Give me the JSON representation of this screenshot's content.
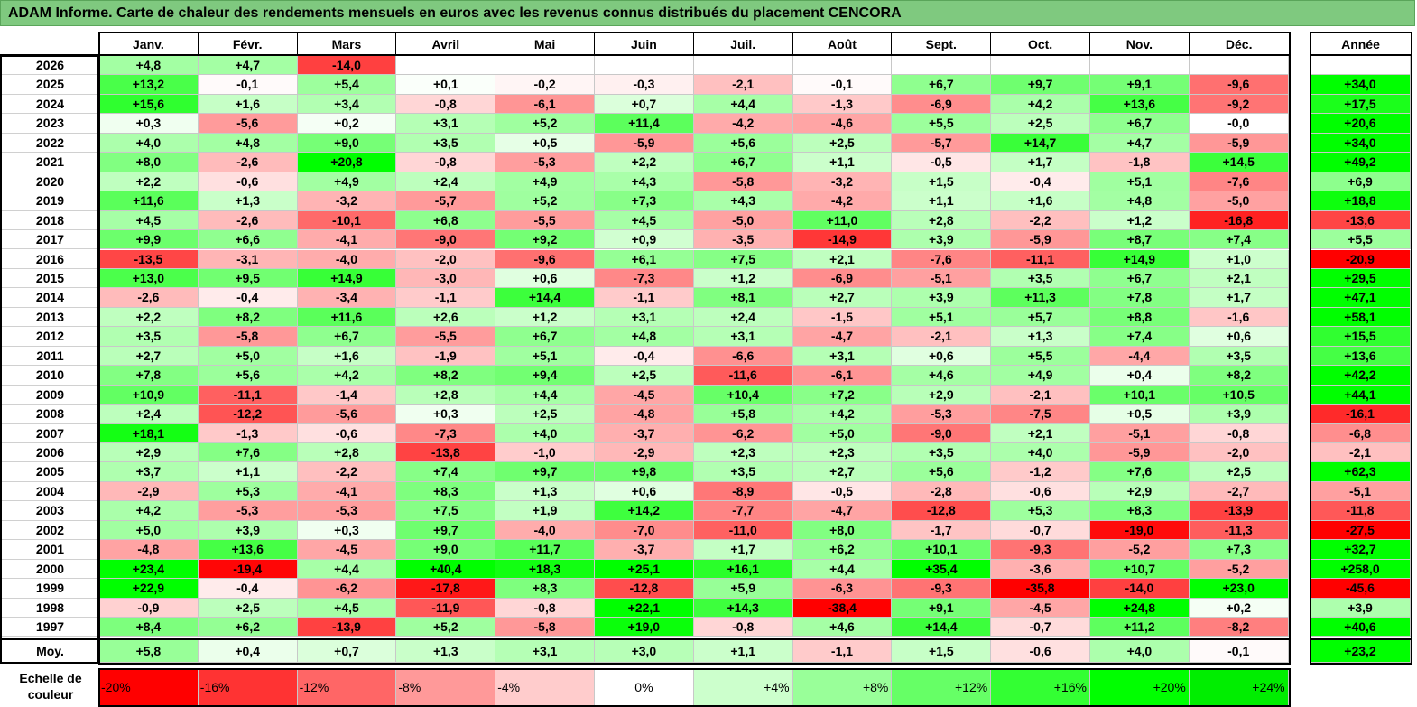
{
  "title": "ADAM Informe. Carte de chaleur des rendements mensuels en euros avec les revenus connus distribués du placement CENCORA",
  "chart_data": {
    "type": "heatmap",
    "title": "ADAM Informe. Carte de chaleur des rendements mensuels en euros avec les revenus connus distribués du placement CENCORA",
    "columns": [
      "Janv.",
      "Févr.",
      "Mars",
      "Avril",
      "Mai",
      "Juin",
      "Juil.",
      "Août",
      "Sept.",
      "Oct.",
      "Nov.",
      "Déc."
    ],
    "year_header": "Année",
    "rows": [
      {
        "label": "2026",
        "months": [
          "+4,8",
          "+4,7",
          "-14,0",
          "",
          "",
          "",
          "",
          "",
          "",
          "",
          "",
          ""
        ],
        "year": ""
      },
      {
        "label": "2025",
        "months": [
          "+13,2",
          "-0,1",
          "+5,4",
          "+0,1",
          "-0,2",
          "-0,3",
          "-2,1",
          "-0,1",
          "+6,7",
          "+9,7",
          "+9,1",
          "-9,6"
        ],
        "year": "+34,0"
      },
      {
        "label": "2024",
        "months": [
          "+15,6",
          "+1,6",
          "+3,4",
          "-0,8",
          "-6,1",
          "+0,7",
          "+4,4",
          "-1,3",
          "-6,9",
          "+4,2",
          "+13,6",
          "-9,2"
        ],
        "year": "+17,5"
      },
      {
        "label": "2023",
        "months": [
          "+0,3",
          "-5,6",
          "+0,2",
          "+3,1",
          "+5,2",
          "+11,4",
          "-4,2",
          "-4,6",
          "+5,5",
          "+2,5",
          "+6,7",
          "-0,0"
        ],
        "year": "+20,6"
      },
      {
        "label": "2022",
        "months": [
          "+4,0",
          "+4,8",
          "+9,0",
          "+3,5",
          "+0,5",
          "-5,9",
          "+5,6",
          "+2,5",
          "-5,7",
          "+14,7",
          "+4,7",
          "-5,9"
        ],
        "year": "+34,0"
      },
      {
        "label": "2021",
        "months": [
          "+8,0",
          "-2,6",
          "+20,8",
          "-0,8",
          "-5,3",
          "+2,2",
          "+6,7",
          "+1,1",
          "-0,5",
          "+1,7",
          "-1,8",
          "+14,5"
        ],
        "year": "+49,2"
      },
      {
        "label": "2020",
        "months": [
          "+2,2",
          "-0,6",
          "+4,9",
          "+2,4",
          "+4,9",
          "+4,3",
          "-5,8",
          "-3,2",
          "+1,5",
          "-0,4",
          "+5,1",
          "-7,6"
        ],
        "year": "+6,9"
      },
      {
        "label": "2019",
        "months": [
          "+11,6",
          "+1,3",
          "-3,2",
          "-5,7",
          "+5,2",
          "+7,3",
          "+4,3",
          "-4,2",
          "+1,1",
          "+1,6",
          "+4,8",
          "-5,0"
        ],
        "year": "+18,8"
      },
      {
        "label": "2018",
        "months": [
          "+4,5",
          "-2,6",
          "-10,1",
          "+6,8",
          "-5,5",
          "+4,5",
          "-5,0",
          "+11,0",
          "+2,8",
          "-2,2",
          "+1,2",
          "-16,8"
        ],
        "year": "-13,6"
      },
      {
        "label": "2017",
        "months": [
          "+9,9",
          "+6,6",
          "-4,1",
          "-9,0",
          "+9,2",
          "+0,9",
          "-3,5",
          "-14,9",
          "+3,9",
          "-5,9",
          "+8,7",
          "+7,4"
        ],
        "year": "+5,5"
      },
      {
        "label": "2016",
        "months": [
          "-13,5",
          "-3,1",
          "-4,0",
          "-2,0",
          "-9,6",
          "+6,1",
          "+7,5",
          "+2,1",
          "-7,6",
          "-11,1",
          "+14,9",
          "+1,0"
        ],
        "year": "-20,9"
      },
      {
        "label": "2015",
        "months": [
          "+13,0",
          "+9,5",
          "+14,9",
          "-3,0",
          "+0,6",
          "-7,3",
          "+1,2",
          "-6,9",
          "-5,1",
          "+3,5",
          "+6,7",
          "+2,1"
        ],
        "year": "+29,5"
      },
      {
        "label": "2014",
        "months": [
          "-2,6",
          "-0,4",
          "-3,4",
          "-1,1",
          "+14,4",
          "-1,1",
          "+8,1",
          "+2,7",
          "+3,9",
          "+11,3",
          "+7,8",
          "+1,7"
        ],
        "year": "+47,1"
      },
      {
        "label": "2013",
        "months": [
          "+2,2",
          "+8,2",
          "+11,6",
          "+2,6",
          "+1,2",
          "+3,1",
          "+2,4",
          "-1,5",
          "+5,1",
          "+5,7",
          "+8,8",
          "-1,6"
        ],
        "year": "+58,1"
      },
      {
        "label": "2012",
        "months": [
          "+3,5",
          "-5,8",
          "+6,7",
          "-5,5",
          "+6,7",
          "+4,8",
          "+3,1",
          "-4,7",
          "-2,1",
          "+1,3",
          "+7,4",
          "+0,6"
        ],
        "year": "+15,5"
      },
      {
        "label": "2011",
        "months": [
          "+2,7",
          "+5,0",
          "+1,6",
          "-1,9",
          "+5,1",
          "-0,4",
          "-6,6",
          "+3,1",
          "+0,6",
          "+5,5",
          "-4,4",
          "+3,5"
        ],
        "year": "+13,6"
      },
      {
        "label": "2010",
        "months": [
          "+7,8",
          "+5,6",
          "+4,2",
          "+8,2",
          "+9,4",
          "+2,5",
          "-11,6",
          "-6,1",
          "+4,6",
          "+4,9",
          "+0,4",
          "+8,2"
        ],
        "year": "+42,2"
      },
      {
        "label": "2009",
        "months": [
          "+10,9",
          "-11,1",
          "-1,4",
          "+2,8",
          "+4,4",
          "-4,5",
          "+10,4",
          "+7,2",
          "+2,9",
          "-2,1",
          "+10,1",
          "+10,5"
        ],
        "year": "+44,1"
      },
      {
        "label": "2008",
        "months": [
          "+2,4",
          "-12,2",
          "-5,6",
          "+0,3",
          "+2,5",
          "-4,8",
          "+5,8",
          "+4,2",
          "-5,3",
          "-7,5",
          "+0,5",
          "+3,9"
        ],
        "year": "-16,1"
      },
      {
        "label": "2007",
        "months": [
          "+18,1",
          "-1,3",
          "-0,6",
          "-7,3",
          "+4,0",
          "-3,7",
          "-6,2",
          "+5,0",
          "-9,0",
          "+2,1",
          "-5,1",
          "-0,8"
        ],
        "year": "-6,8"
      },
      {
        "label": "2006",
        "months": [
          "+2,9",
          "+7,6",
          "+2,8",
          "-13,8",
          "-1,0",
          "-2,9",
          "+2,3",
          "+2,3",
          "+3,5",
          "+4,0",
          "-5,9",
          "-2,0"
        ],
        "year": "-2,1"
      },
      {
        "label": "2005",
        "months": [
          "+3,7",
          "+1,1",
          "-2,2",
          "+7,4",
          "+9,7",
          "+9,8",
          "+3,5",
          "+2,7",
          "+5,6",
          "-1,2",
          "+7,6",
          "+2,5"
        ],
        "year": "+62,3"
      },
      {
        "label": "2004",
        "months": [
          "-2,9",
          "+5,3",
          "-4,1",
          "+8,3",
          "+1,3",
          "+0,6",
          "-8,9",
          "-0,5",
          "-2,8",
          "-0,6",
          "+2,9",
          "-2,7"
        ],
        "year": "-5,1"
      },
      {
        "label": "2003",
        "months": [
          "+4,2",
          "-5,3",
          "-5,3",
          "+7,5",
          "+1,9",
          "+14,2",
          "-7,7",
          "-4,7",
          "-12,8",
          "+5,3",
          "+8,3",
          "-13,9"
        ],
        "year": "-11,8"
      },
      {
        "label": "2002",
        "months": [
          "+5,0",
          "+3,9",
          "+0,3",
          "+9,7",
          "-4,0",
          "-7,0",
          "-11,0",
          "+8,0",
          "-1,7",
          "-0,7",
          "-19,0",
          "-11,3"
        ],
        "year": "-27,5"
      },
      {
        "label": "2001",
        "months": [
          "-4,8",
          "+13,6",
          "-4,5",
          "+9,0",
          "+11,7",
          "-3,7",
          "+1,7",
          "+6,2",
          "+10,1",
          "-9,3",
          "-5,2",
          "+7,3"
        ],
        "year": "+32,7"
      },
      {
        "label": "2000",
        "months": [
          "+23,4",
          "-19,4",
          "+4,4",
          "+40,4",
          "+18,3",
          "+25,1",
          "+16,1",
          "+4,4",
          "+35,4",
          "-3,6",
          "+10,7",
          "-5,2"
        ],
        "year": "+258,0"
      },
      {
        "label": "1999",
        "months": [
          "+22,9",
          "-0,4",
          "-6,2",
          "-17,8",
          "+8,3",
          "-12,8",
          "+5,9",
          "-6,3",
          "-9,3",
          "-35,8",
          "-14,0",
          "+23,0"
        ],
        "year": "-45,6"
      },
      {
        "label": "1998",
        "months": [
          "-0,9",
          "+2,5",
          "+4,5",
          "-11,9",
          "-0,8",
          "+22,1",
          "+14,3",
          "-38,4",
          "+9,1",
          "-4,5",
          "+24,8",
          "+0,2"
        ],
        "year": "+3,9"
      },
      {
        "label": "1997",
        "months": [
          "+8,4",
          "+6,2",
          "-13,9",
          "+5,2",
          "-5,8",
          "+19,0",
          "-0,8",
          "+4,6",
          "+14,4",
          "-0,7",
          "+11,2",
          "-8,2"
        ],
        "year": "+40,6"
      }
    ],
    "average_row": {
      "label": "Moy.",
      "months": [
        "+5,8",
        "+0,4",
        "+0,7",
        "+1,3",
        "+3,1",
        "+3,0",
        "+1,1",
        "-1,1",
        "+1,5",
        "-0,6",
        "+4,0",
        "-0,1"
      ],
      "year": "+23,2"
    },
    "color_scale": {
      "label": "Echelle de couleur",
      "stops": [
        {
          "label": "-20%",
          "value": -20,
          "color": "#ff0000"
        },
        {
          "label": "-16%",
          "value": -16,
          "color": "#ff3333"
        },
        {
          "label": "-12%",
          "value": -12,
          "color": "#ff6666"
        },
        {
          "label": "-8%",
          "value": -8,
          "color": "#ff9999"
        },
        {
          "label": "-4%",
          "value": -4,
          "color": "#ffcccc"
        },
        {
          "label": "0%",
          "value": 0,
          "color": "#ffffff"
        },
        {
          "label": "+4%",
          "value": 4,
          "color": "#ccffcc"
        },
        {
          "label": "+8%",
          "value": 8,
          "color": "#99ff99"
        },
        {
          "label": "+12%",
          "value": 12,
          "color": "#66ff66"
        },
        {
          "label": "+16%",
          "value": 16,
          "color": "#33ff33"
        },
        {
          "label": "+20%",
          "value": 20,
          "color": "#00ff00"
        },
        {
          "label": "+24%",
          "value": 24,
          "color": "#00ee00"
        }
      ]
    }
  }
}
